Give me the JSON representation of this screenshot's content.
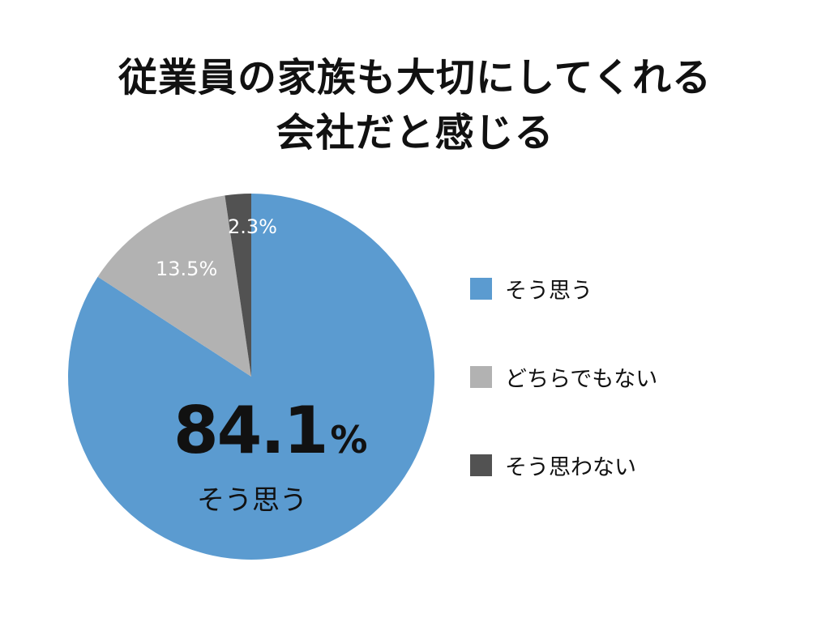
{
  "title": {
    "line1": "従業員の家族も大切にしてくれる",
    "line2": "会社だと感じる"
  },
  "chart_data": {
    "type": "pie",
    "title": "従業員の家族も大切にしてくれる会社だと感じる",
    "slices": [
      {
        "label": "そう思う",
        "value": 84.1,
        "display": "84.1%",
        "color": "#5b9bd0"
      },
      {
        "label": "どちらでもない",
        "value": 13.5,
        "display": "13.5%",
        "color": "#b2b2b2"
      },
      {
        "label": "そう思わない",
        "value": 2.3,
        "display": "2.3%",
        "color": "#525252"
      }
    ],
    "start_angle": "12 o'clock",
    "direction": "clockwise",
    "legend_position": "right"
  },
  "highlight": {
    "number": "84.1",
    "unit": "%",
    "label": "そう思う"
  }
}
